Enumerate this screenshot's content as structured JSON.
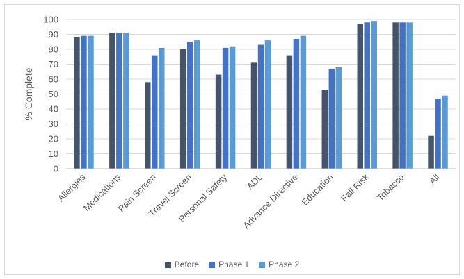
{
  "chart_data": {
    "type": "bar",
    "title": "",
    "xlabel": "",
    "ylabel": "% Complete",
    "ylim": [
      0,
      100
    ],
    "yticks": [
      0,
      10,
      20,
      30,
      40,
      50,
      60,
      70,
      80,
      90,
      100
    ],
    "grid": true,
    "legend_position": "bottom",
    "categories": [
      "Allergies",
      "Medications",
      "Pain Screen",
      "Travel Screen",
      "Personal Safety",
      "ADL",
      "Advance Directive",
      "Education",
      "Fall Risk",
      "Tobacco",
      "All"
    ],
    "series": [
      {
        "name": "Before",
        "color": "#44546a",
        "values": [
          88,
          91,
          58,
          80,
          63,
          71,
          76,
          53,
          97,
          98,
          22
        ]
      },
      {
        "name": "Phase 1",
        "color": "#4472c4",
        "values": [
          89,
          91,
          76,
          85,
          81,
          83,
          87,
          67,
          98,
          98,
          47
        ]
      },
      {
        "name": "Phase 2",
        "color": "#5b9bd5",
        "values": [
          89,
          91,
          81,
          86,
          82,
          86,
          89,
          68,
          99,
          98,
          49
        ]
      }
    ]
  }
}
